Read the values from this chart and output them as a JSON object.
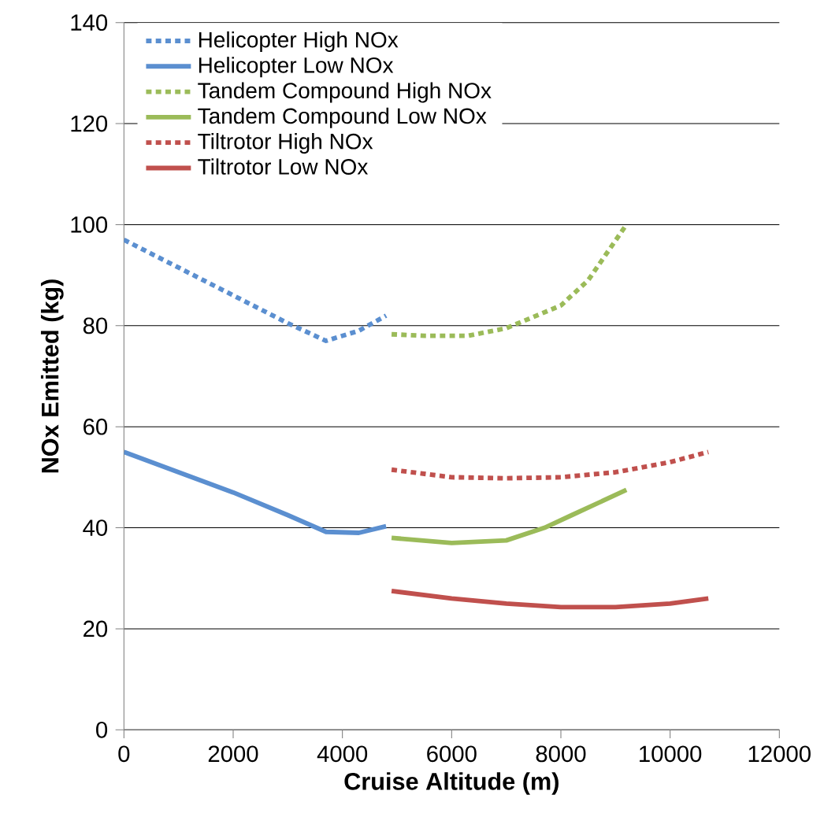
{
  "chart_data": {
    "type": "line",
    "xlabel": "Cruise Altitude (m)",
    "ylabel": "NOx Emitted (kg)",
    "xlim": [
      0,
      12000
    ],
    "xticks": [
      0,
      2000,
      4000,
      6000,
      8000,
      10000,
      12000
    ],
    "ylim": [
      0,
      140
    ],
    "yticks": [
      0,
      20,
      40,
      60,
      80,
      100,
      120,
      140
    ],
    "grid": "y",
    "legend": "top left",
    "marker": "none",
    "series": [
      {
        "name": "Helicopter High NOx",
        "color": "#5b8fd0",
        "line_style": "dotted",
        "x": [
          0,
          1000,
          2000,
          3000,
          3700,
          4300,
          4800
        ],
        "values": [
          97,
          91.5,
          86,
          80.5,
          77,
          79,
          82
        ]
      },
      {
        "name": "Helicopter Low NOx",
        "color": "#5b8fd0",
        "line_style": "solid",
        "x": [
          0,
          1000,
          2000,
          3000,
          3700,
          4300,
          4800
        ],
        "values": [
          55,
          51,
          47,
          42.5,
          39.2,
          39,
          40.3
        ]
      },
      {
        "name": "Tandem Compound High NOx",
        "color": "#9bbb59",
        "line_style": "dotted",
        "x": [
          4900,
          5500,
          6300,
          7000,
          8000,
          8500,
          9200
        ],
        "values": [
          78.3,
          78,
          78,
          79.5,
          84,
          89,
          100
        ]
      },
      {
        "name": "Tandem Compound Low NOx",
        "color": "#9bbb59",
        "line_style": "solid",
        "x": [
          4900,
          6000,
          7000,
          7700,
          8200,
          9200
        ],
        "values": [
          38,
          37,
          37.5,
          40,
          42.5,
          47.5
        ]
      },
      {
        "name": "Tiltrotor High NOx",
        "color": "#c0504d",
        "line_style": "dotted",
        "x": [
          4900,
          6000,
          7000,
          8000,
          9000,
          10000,
          10700
        ],
        "values": [
          51.5,
          50,
          49.8,
          50,
          51,
          53,
          55
        ]
      },
      {
        "name": "Tiltrotor Low NOx",
        "color": "#c0504d",
        "line_style": "solid",
        "x": [
          4900,
          6000,
          7000,
          8000,
          9000,
          10000,
          10700
        ],
        "values": [
          27.5,
          26,
          25,
          24.3,
          24.3,
          25,
          26
        ]
      }
    ]
  }
}
